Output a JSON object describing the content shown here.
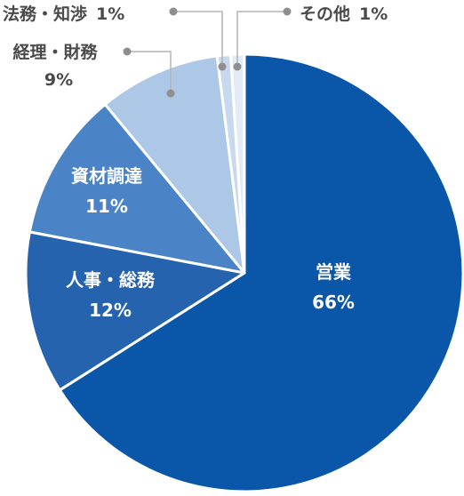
{
  "chart_data": {
    "type": "pie",
    "start": "12 o'clock",
    "direction": "clockwise",
    "slices": [
      {
        "label": "営業",
        "value": 66,
        "value_label": "66%",
        "color": "#0a56a8",
        "text_color": "#ffffff",
        "label_placement": "inside"
      },
      {
        "label": "人事・総務",
        "value": 12,
        "value_label": "12%",
        "color": "#2563ae",
        "text_color": "#ffffff",
        "label_placement": "inside"
      },
      {
        "label": "資材調達",
        "value": 11,
        "value_label": "11%",
        "color": "#4a84c6",
        "text_color": "#ffffff",
        "label_placement": "inside"
      },
      {
        "label": "経理・財務",
        "value": 9,
        "value_label": "9%",
        "color": "#adc8e6",
        "text_color": "#4a4a4a",
        "label_placement": "outside"
      },
      {
        "label": "法務・知渉",
        "value": 1,
        "value_label": "1%",
        "color": "#c7d9ee",
        "text_color": "#4a4a4a",
        "label_placement": "outside"
      },
      {
        "label": "その他",
        "value": 1,
        "value_label": "1%",
        "color": "#e3ecf6",
        "text_color": "#4a4a4a",
        "label_placement": "outside"
      }
    ],
    "legend": "none"
  }
}
